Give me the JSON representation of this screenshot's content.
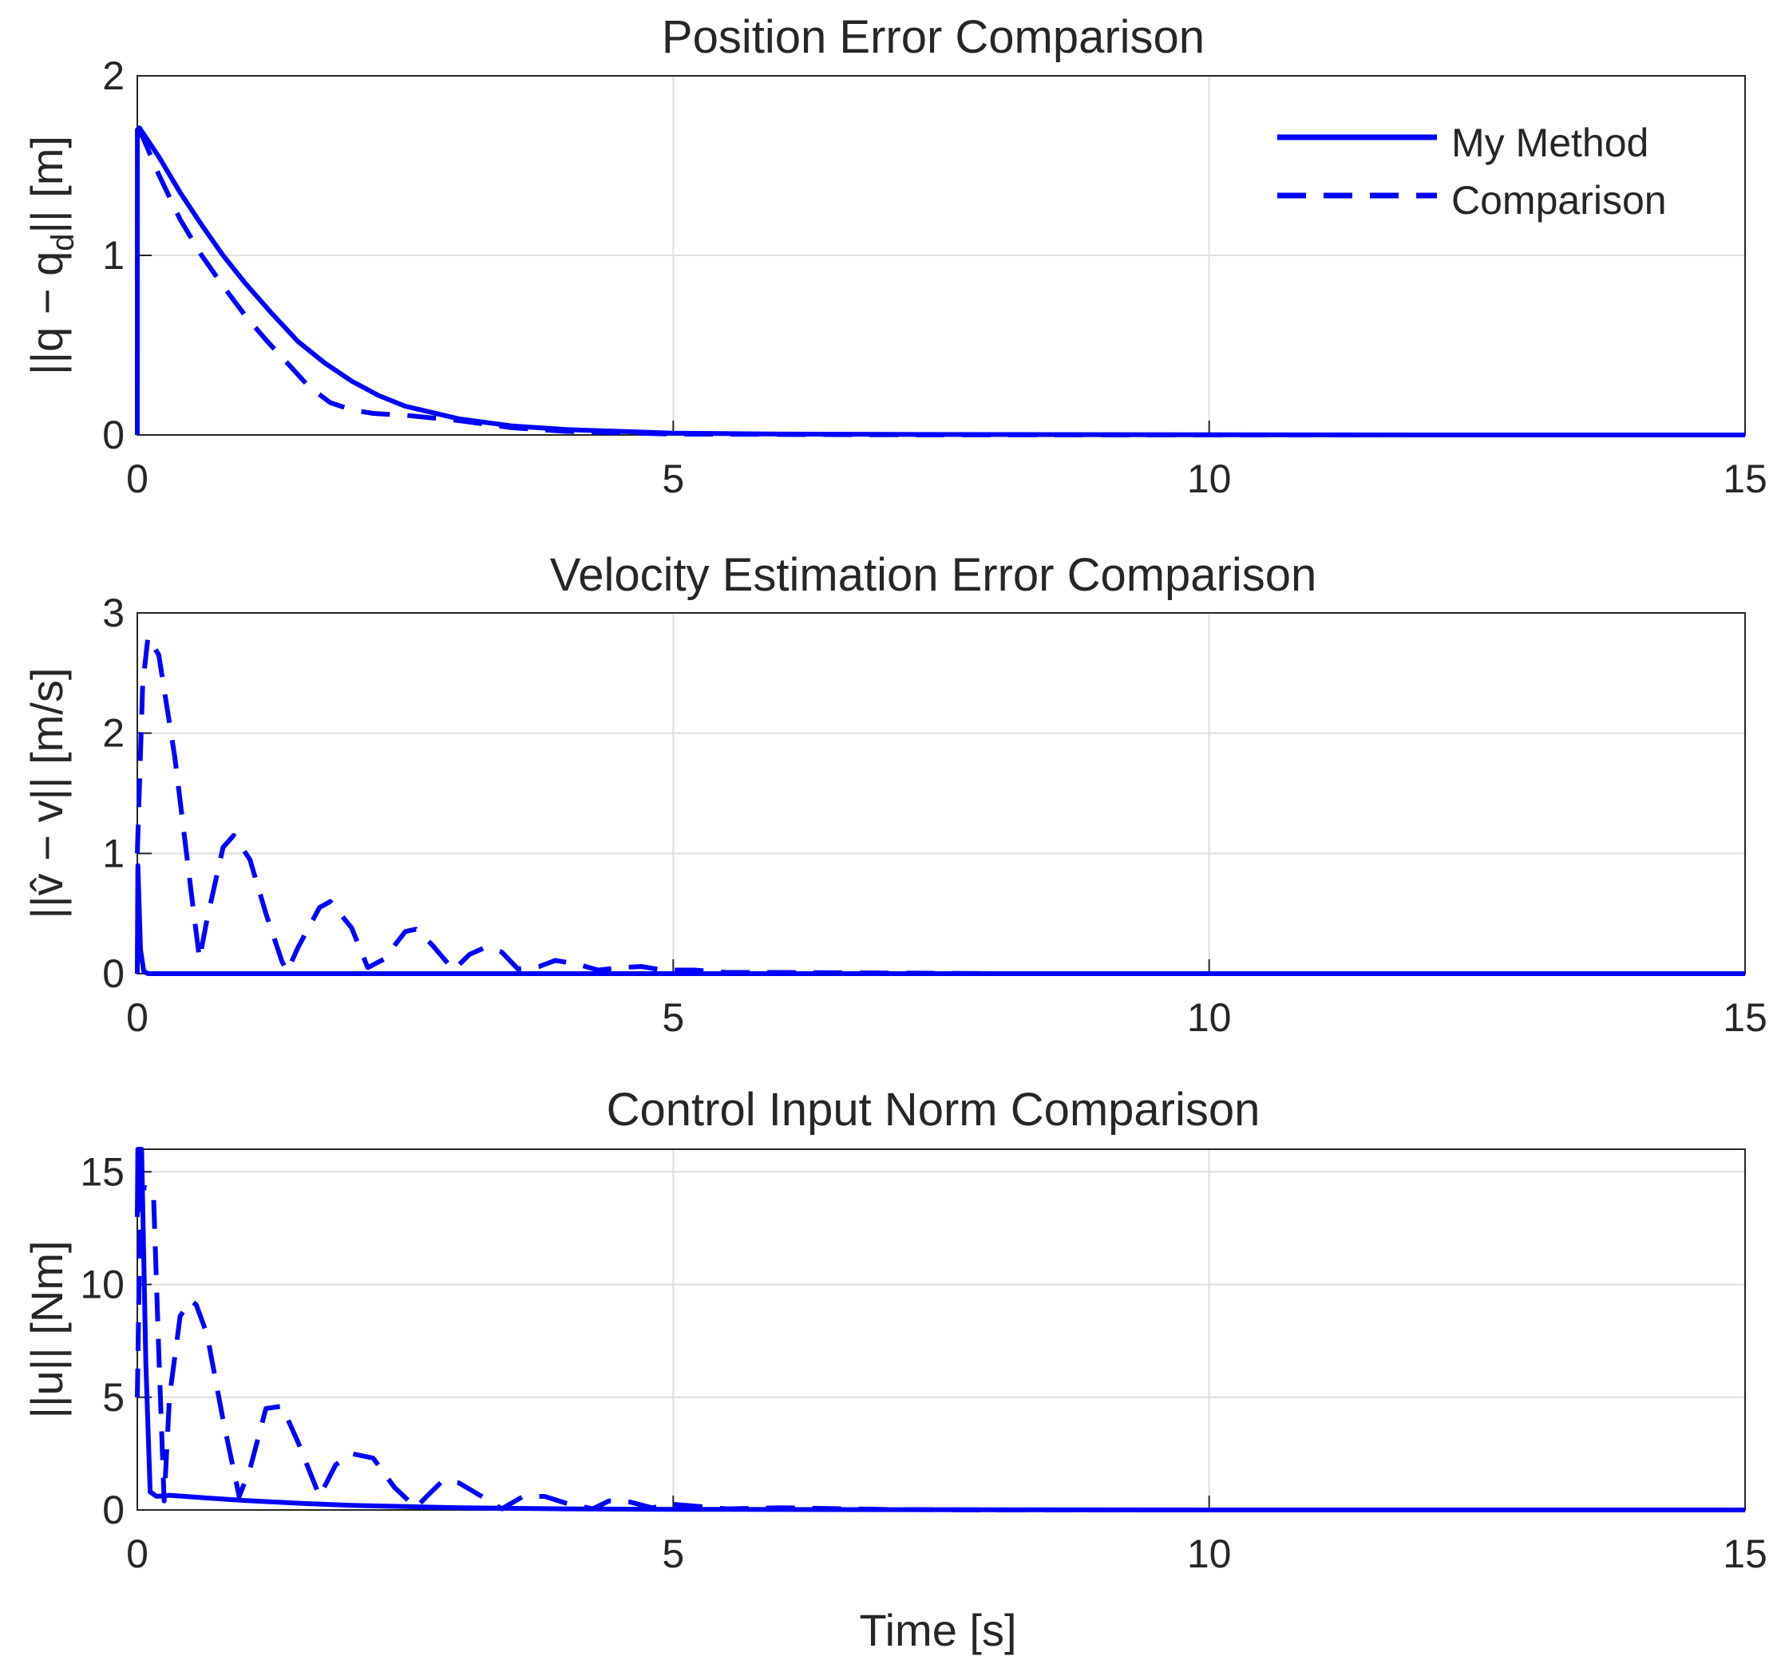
{
  "chart_data": [
    {
      "type": "line",
      "title": "Position Error Comparison",
      "xlabel": "",
      "ylabel": "||q − q_d|| [m]",
      "ylabel_parts": {
        "main": "||q − q",
        "sub": "d",
        "tail": "|| [m]"
      },
      "xlim": [
        0,
        15
      ],
      "ylim": [
        0,
        2
      ],
      "xticks": [
        0,
        5,
        10,
        15
      ],
      "yticks": [
        0,
        1,
        2
      ],
      "grid": true,
      "legend": {
        "placement": "top-right",
        "entries": [
          "My Method",
          "Comparison"
        ]
      },
      "series": [
        {
          "name": "My Method",
          "style": "solid",
          "x": [
            0,
            0.001,
            0.02,
            0.2,
            0.4,
            0.6,
            0.8,
            1.0,
            1.25,
            1.5,
            1.75,
            2.0,
            2.25,
            2.5,
            3.0,
            3.5,
            4.0,
            4.5,
            5.0,
            6.0,
            7.0,
            8.0,
            10.0,
            12.0,
            15.0
          ],
          "y": [
            0,
            1.7,
            1.71,
            1.55,
            1.35,
            1.17,
            1.0,
            0.85,
            0.68,
            0.52,
            0.4,
            0.3,
            0.22,
            0.16,
            0.09,
            0.05,
            0.03,
            0.02,
            0.01,
            0.005,
            0.003,
            0.002,
            0.001,
            0.0,
            0.0
          ]
        },
        {
          "name": "Comparison",
          "style": "dashed",
          "x": [
            0,
            0.05,
            0.2,
            0.4,
            0.6,
            0.8,
            1.0,
            1.2,
            1.4,
            1.6,
            1.8,
            2.0,
            2.2,
            2.5,
            3.0,
            3.5,
            4.0,
            5.0,
            7.0,
            10.0,
            15.0
          ],
          "y": [
            1.7,
            1.66,
            1.45,
            1.2,
            1.0,
            0.83,
            0.67,
            0.53,
            0.4,
            0.27,
            0.18,
            0.14,
            0.12,
            0.11,
            0.08,
            0.04,
            0.02,
            0.005,
            0.001,
            0.0,
            0.0
          ]
        }
      ]
    },
    {
      "type": "line",
      "title": "Velocity Estimation Error Comparison",
      "xlabel": "",
      "ylabel": "||v̂ − v|| [m/s]",
      "xlim": [
        0,
        15
      ],
      "ylim": [
        0,
        3
      ],
      "xticks": [
        0,
        5,
        10,
        15
      ],
      "yticks": [
        0,
        1,
        2,
        3
      ],
      "grid": true,
      "series": [
        {
          "name": "My Method",
          "style": "solid",
          "x": [
            0,
            0.005,
            0.03,
            0.06,
            0.1,
            0.3,
            1,
            5,
            15
          ],
          "y": [
            0,
            0.9,
            0.2,
            0.02,
            0.0,
            0.0,
            0.0,
            0.0,
            0.0
          ]
        },
        {
          "name": "Comparison",
          "style": "dashed",
          "x": [
            0,
            0.05,
            0.1,
            0.2,
            0.35,
            0.5,
            0.58,
            0.65,
            0.8,
            0.9,
            1.05,
            1.2,
            1.35,
            1.4,
            1.5,
            1.7,
            1.8,
            2.0,
            2.15,
            2.3,
            2.5,
            2.6,
            2.75,
            2.95,
            3.1,
            3.25,
            3.4,
            3.55,
            3.75,
            3.9,
            4.1,
            4.3,
            4.5,
            4.7,
            4.9,
            5.2,
            5.5,
            6.0,
            7.0,
            8.0,
            10.0,
            15.0
          ],
          "y": [
            1.0,
            2.4,
            2.8,
            2.65,
            1.8,
            0.7,
            0.12,
            0.45,
            1.05,
            1.15,
            0.95,
            0.5,
            0.1,
            0.02,
            0.22,
            0.55,
            0.6,
            0.38,
            0.05,
            0.12,
            0.35,
            0.37,
            0.24,
            0.03,
            0.16,
            0.22,
            0.18,
            0.04,
            0.06,
            0.11,
            0.08,
            0.03,
            0.05,
            0.06,
            0.03,
            0.03,
            0.01,
            0.01,
            0.005,
            0.0,
            0.0,
            0.0
          ]
        }
      ]
    },
    {
      "type": "line",
      "title": "Control Input Norm Comparison",
      "xlabel": "Time [s]",
      "ylabel": "||u|| [Nm]",
      "xlim": [
        0,
        15
      ],
      "ylim": [
        0,
        16
      ],
      "xticks": [
        0,
        5,
        10,
        15
      ],
      "yticks": [
        0,
        5,
        10,
        15
      ],
      "grid": true,
      "series": [
        {
          "name": "My Method",
          "style": "solid",
          "x": [
            0,
            0.005,
            0.04,
            0.08,
            0.12,
            0.18,
            0.3,
            0.6,
            1.0,
            1.5,
            2.0,
            3.0,
            4.0,
            5.0,
            6.0,
            8.0,
            10.0,
            15.0
          ],
          "y": [
            13,
            16,
            16,
            6.5,
            0.8,
            0.6,
            0.65,
            0.55,
            0.42,
            0.3,
            0.2,
            0.1,
            0.05,
            0.03,
            0.02,
            0.01,
            0.0,
            0.0
          ]
        },
        {
          "name": "Comparison",
          "style": "dashed",
          "x": [
            0,
            0.03,
            0.08,
            0.15,
            0.2,
            0.25,
            0.3,
            0.4,
            0.5,
            0.55,
            0.65,
            0.8,
            0.95,
            1.05,
            1.2,
            1.35,
            1.5,
            1.7,
            1.85,
            2.0,
            2.2,
            2.4,
            2.6,
            2.7,
            2.85,
            3.0,
            3.25,
            3.4,
            3.6,
            3.8,
            4.0,
            4.25,
            4.4,
            4.6,
            4.8,
            5.0,
            5.5,
            6.0,
            7.0,
            8.0,
            10.0,
            15.0
          ],
          "y": [
            5,
            14.2,
            14.3,
            14.2,
            7.0,
            0.4,
            5.0,
            8.6,
            9.3,
            9.1,
            7.8,
            4.0,
            0.6,
            1.8,
            4.5,
            4.6,
            3.0,
            0.6,
            2.0,
            2.5,
            2.3,
            1.0,
            0.1,
            0.6,
            1.3,
            1.2,
            0.5,
            0.05,
            0.6,
            0.6,
            0.3,
            0.05,
            0.4,
            0.35,
            0.1,
            0.25,
            0.05,
            0.1,
            0.02,
            0.0,
            0.0,
            0.0
          ]
        }
      ]
    }
  ]
}
